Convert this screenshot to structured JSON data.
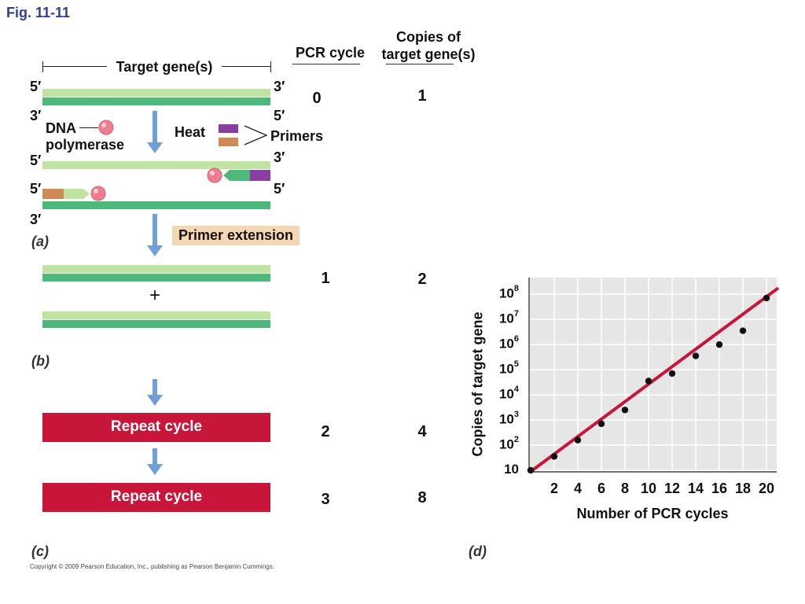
{
  "figure": {
    "title": "Fig. 11-11",
    "copyright": "Copyright © 2009 Pearson Education, Inc., publishing as Pearson Benjamin Cummings."
  },
  "headers": {
    "pcr_cycle": "PCR cycle",
    "copies_line1": "Copies of",
    "copies_line2": "target gene(s)"
  },
  "panel_a": {
    "label": "(a)",
    "target_genes": "Target gene(s)",
    "five_prime": "5′",
    "three_prime": "3′",
    "dna_line1": "DNA",
    "dna_line2": "polymerase",
    "heat": "Heat",
    "primers": "Primers",
    "primer_extension": "Primer extension",
    "cycle": "0",
    "copies": "1"
  },
  "panel_b": {
    "label": "(b)",
    "plus": "+",
    "cycle": "1",
    "copies": "2"
  },
  "panel_c": {
    "label": "(c)",
    "repeat1": "Repeat cycle",
    "repeat2": "Repeat cycle",
    "cycle2": "2",
    "copies2": "4",
    "cycle3": "3",
    "copies3": "8"
  },
  "panel_d": {
    "label": "(d)"
  },
  "colors": {
    "light_strand": "#bfe3a0",
    "dark_strand": "#4db87a",
    "arrow": "#6f9fd6",
    "repeat_box": "#c8153a",
    "primer_purple": "#8a3fa0",
    "primer_orange": "#d08a55",
    "polymerase": "#ef7d8f",
    "fit_line": "#c8153a",
    "plot_bg": "#e6e6e6",
    "title": "#2f3f96"
  },
  "chart_data": {
    "type": "scatter",
    "title": "",
    "xlabel": "Number of PCR cycles",
    "ylabel": "Copies of target gene",
    "y_scale": "log10",
    "xlim": [
      0,
      21
    ],
    "ylim_exponent": [
      1,
      8.6
    ],
    "x_ticks": [
      "2",
      "4",
      "6",
      "8",
      "10",
      "12",
      "14",
      "16",
      "18",
      "20"
    ],
    "y_ticks": [
      {
        "base": "10",
        "exp": "8"
      },
      {
        "base": "10",
        "exp": "7"
      },
      {
        "base": "10",
        "exp": "6"
      },
      {
        "base": "10",
        "exp": "5"
      },
      {
        "base": "10",
        "exp": "4"
      },
      {
        "base": "10",
        "exp": "3"
      },
      {
        "base": "10",
        "exp": "2"
      },
      {
        "base": "10",
        "exp": ""
      }
    ],
    "points_x": [
      0,
      2,
      4,
      6,
      8,
      10,
      12,
      14,
      16,
      18,
      20
    ],
    "points_log10_y": [
      1.0,
      1.55,
      2.2,
      2.85,
      3.4,
      4.55,
      4.85,
      5.55,
      6.0,
      6.55,
      7.85
    ],
    "fit_line_log10_y": [
      0.95,
      8.25
    ],
    "fit_line_x": [
      0,
      21
    ],
    "grid": true,
    "legend": "none"
  }
}
